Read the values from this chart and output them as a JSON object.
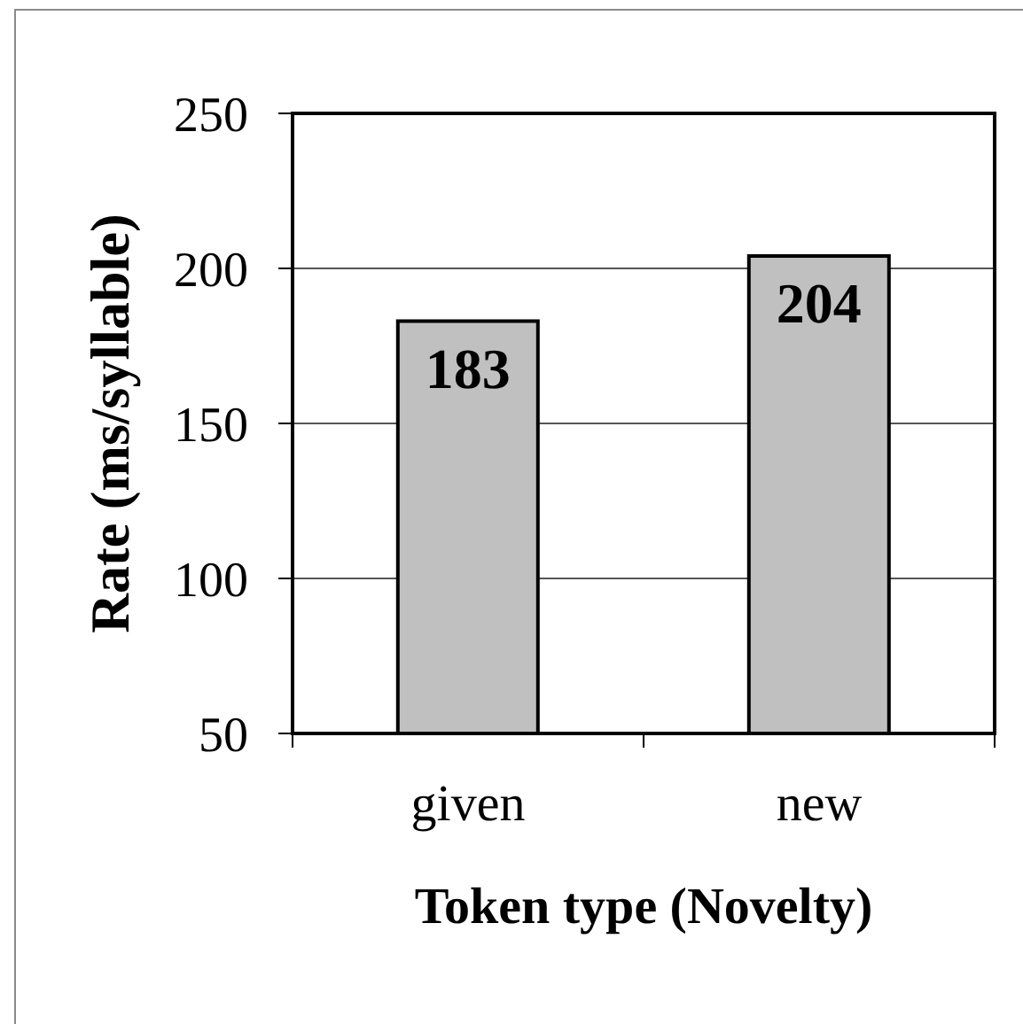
{
  "chart_data": {
    "type": "bar",
    "categories": [
      "given",
      "new"
    ],
    "values": [
      183,
      204
    ],
    "color": "#c0c0c0",
    "xlabel": "Token type (Novelty)",
    "ylabel": "Rate (ms/syllable)",
    "ylim": [
      50,
      250
    ],
    "yticks": [
      50,
      100,
      150,
      200,
      250
    ],
    "grid": "y",
    "data_labels": true
  }
}
